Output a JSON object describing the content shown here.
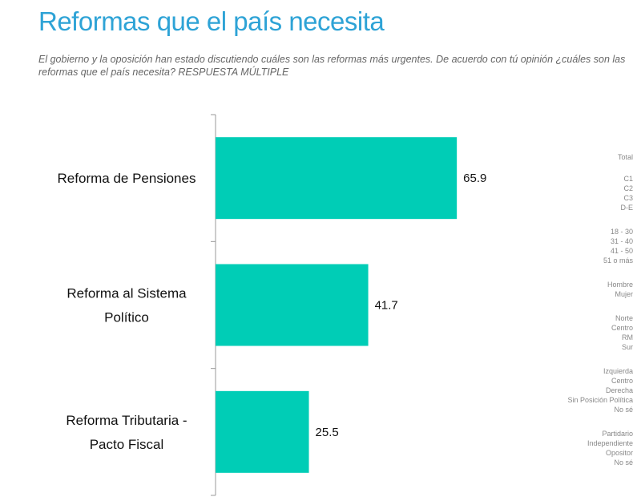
{
  "title": "Reformas que el país necesita",
  "subtitle": "El gobierno y la oposición han estado discutiendo cuáles son las reformas más urgentes. De acuerdo con tú opinión ¿cuáles son las reformas que el país necesita?  RESPUESTA MÚLTIPLE",
  "chart_data": {
    "type": "bar",
    "orientation": "horizontal",
    "categories": [
      [
        "Reforma de Pensiones"
      ],
      [
        "Reforma al Sistema",
        "Político"
      ],
      [
        "Reforma Tributaria -",
        "Pacto Fiscal"
      ]
    ],
    "values": [
      65.9,
      41.7,
      25.5
    ],
    "value_labels": [
      "65.9",
      "41.7",
      "25.5"
    ],
    "bar_color": "#00cdb6",
    "grid": false
  },
  "segments": [
    [
      "Total"
    ],
    [
      "C1",
      "C2",
      "C3",
      "D-E"
    ],
    [
      "18 - 30",
      "31 - 40",
      "41 - 50",
      "51 o más"
    ],
    [
      "Hombre",
      "Mujer"
    ],
    [
      "Norte",
      "Centro",
      "RM",
      "Sur"
    ],
    [
      "Izquierda",
      "Centro",
      "Derecha",
      "Sin Posición Política",
      "No sé"
    ],
    [
      "Partidario",
      "Independiente",
      "Opositor",
      "No sé"
    ]
  ]
}
